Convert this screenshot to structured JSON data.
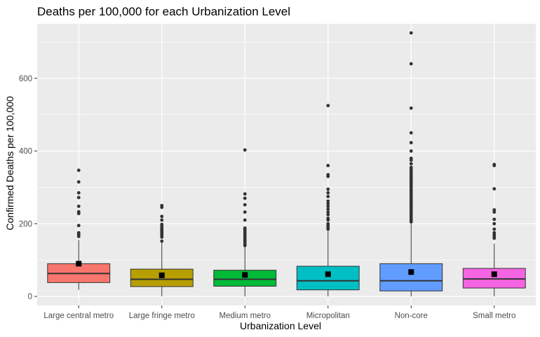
{
  "chart_data": {
    "type": "box",
    "title": "Deaths per 100,000 for each Urbanization Level",
    "xlabel": "Urbanization Level",
    "ylabel": "Confirmed Deaths per 100,000",
    "ylim": [
      -25,
      750
    ],
    "yticks": [
      0,
      200,
      400,
      600
    ],
    "grid": true,
    "legend": "none",
    "categories": [
      "Large central metro",
      "Large fringe metro",
      "Medium metro",
      "Micropolitan",
      "Non-core",
      "Small metro"
    ],
    "colors": [
      "#F8766D",
      "#B79F00",
      "#00BA38",
      "#00BFC4",
      "#619CFF",
      "#F564E3"
    ],
    "series": [
      {
        "category": "Large central metro",
        "q1": 38,
        "median": 63,
        "q3": 90,
        "whisker_low": 18,
        "whisker_high": 155,
        "mean": 90,
        "outliers": [
          165,
          170,
          175,
          195,
          228,
          233,
          248,
          272,
          285,
          315,
          347
        ]
      },
      {
        "category": "Large fringe metro",
        "q1": 27,
        "median": 47,
        "q3": 75,
        "whisker_low": 0,
        "whisker_high": 148,
        "mean": 58,
        "outliers": [
          152,
          163,
          168,
          172,
          176,
          180,
          183,
          187,
          192,
          198,
          210,
          220,
          245,
          250
        ]
      },
      {
        "category": "Medium metro",
        "q1": 28,
        "median": 47,
        "q3": 72,
        "whisker_low": 0,
        "whisker_high": 138,
        "mean": 59,
        "outliers": [
          140,
          144,
          150,
          155,
          160,
          165,
          170,
          175,
          180,
          185,
          188,
          210,
          232,
          252,
          270,
          282,
          403
        ]
      },
      {
        "category": "Micropolitan",
        "q1": 18,
        "median": 43,
        "q3": 83,
        "whisker_low": 0,
        "whisker_high": 180,
        "mean": 61,
        "outliers": [
          185,
          190,
          195,
          200,
          210,
          215,
          225,
          232,
          240,
          248,
          255,
          262,
          275,
          285,
          295,
          330,
          335,
          360,
          525
        ]
      },
      {
        "category": "Non-core",
        "q1": 15,
        "median": 43,
        "q3": 90,
        "whisker_low": 0,
        "whisker_high": 200,
        "mean": 67,
        "outliers": [
          205,
          210,
          215,
          220,
          225,
          230,
          235,
          240,
          245,
          250,
          255,
          260,
          265,
          270,
          275,
          280,
          285,
          290,
          295,
          300,
          305,
          310,
          315,
          320,
          325,
          330,
          335,
          340,
          345,
          350,
          355,
          365,
          375,
          380,
          400,
          423,
          450,
          518,
          640,
          725
        ]
      },
      {
        "category": "Small metro",
        "q1": 23,
        "median": 48,
        "q3": 77,
        "whisker_low": 0,
        "whisker_high": 145,
        "mean": 61,
        "outliers": [
          160,
          165,
          170,
          175,
          185,
          200,
          212,
          232,
          238,
          296,
          360,
          363
        ]
      }
    ]
  }
}
